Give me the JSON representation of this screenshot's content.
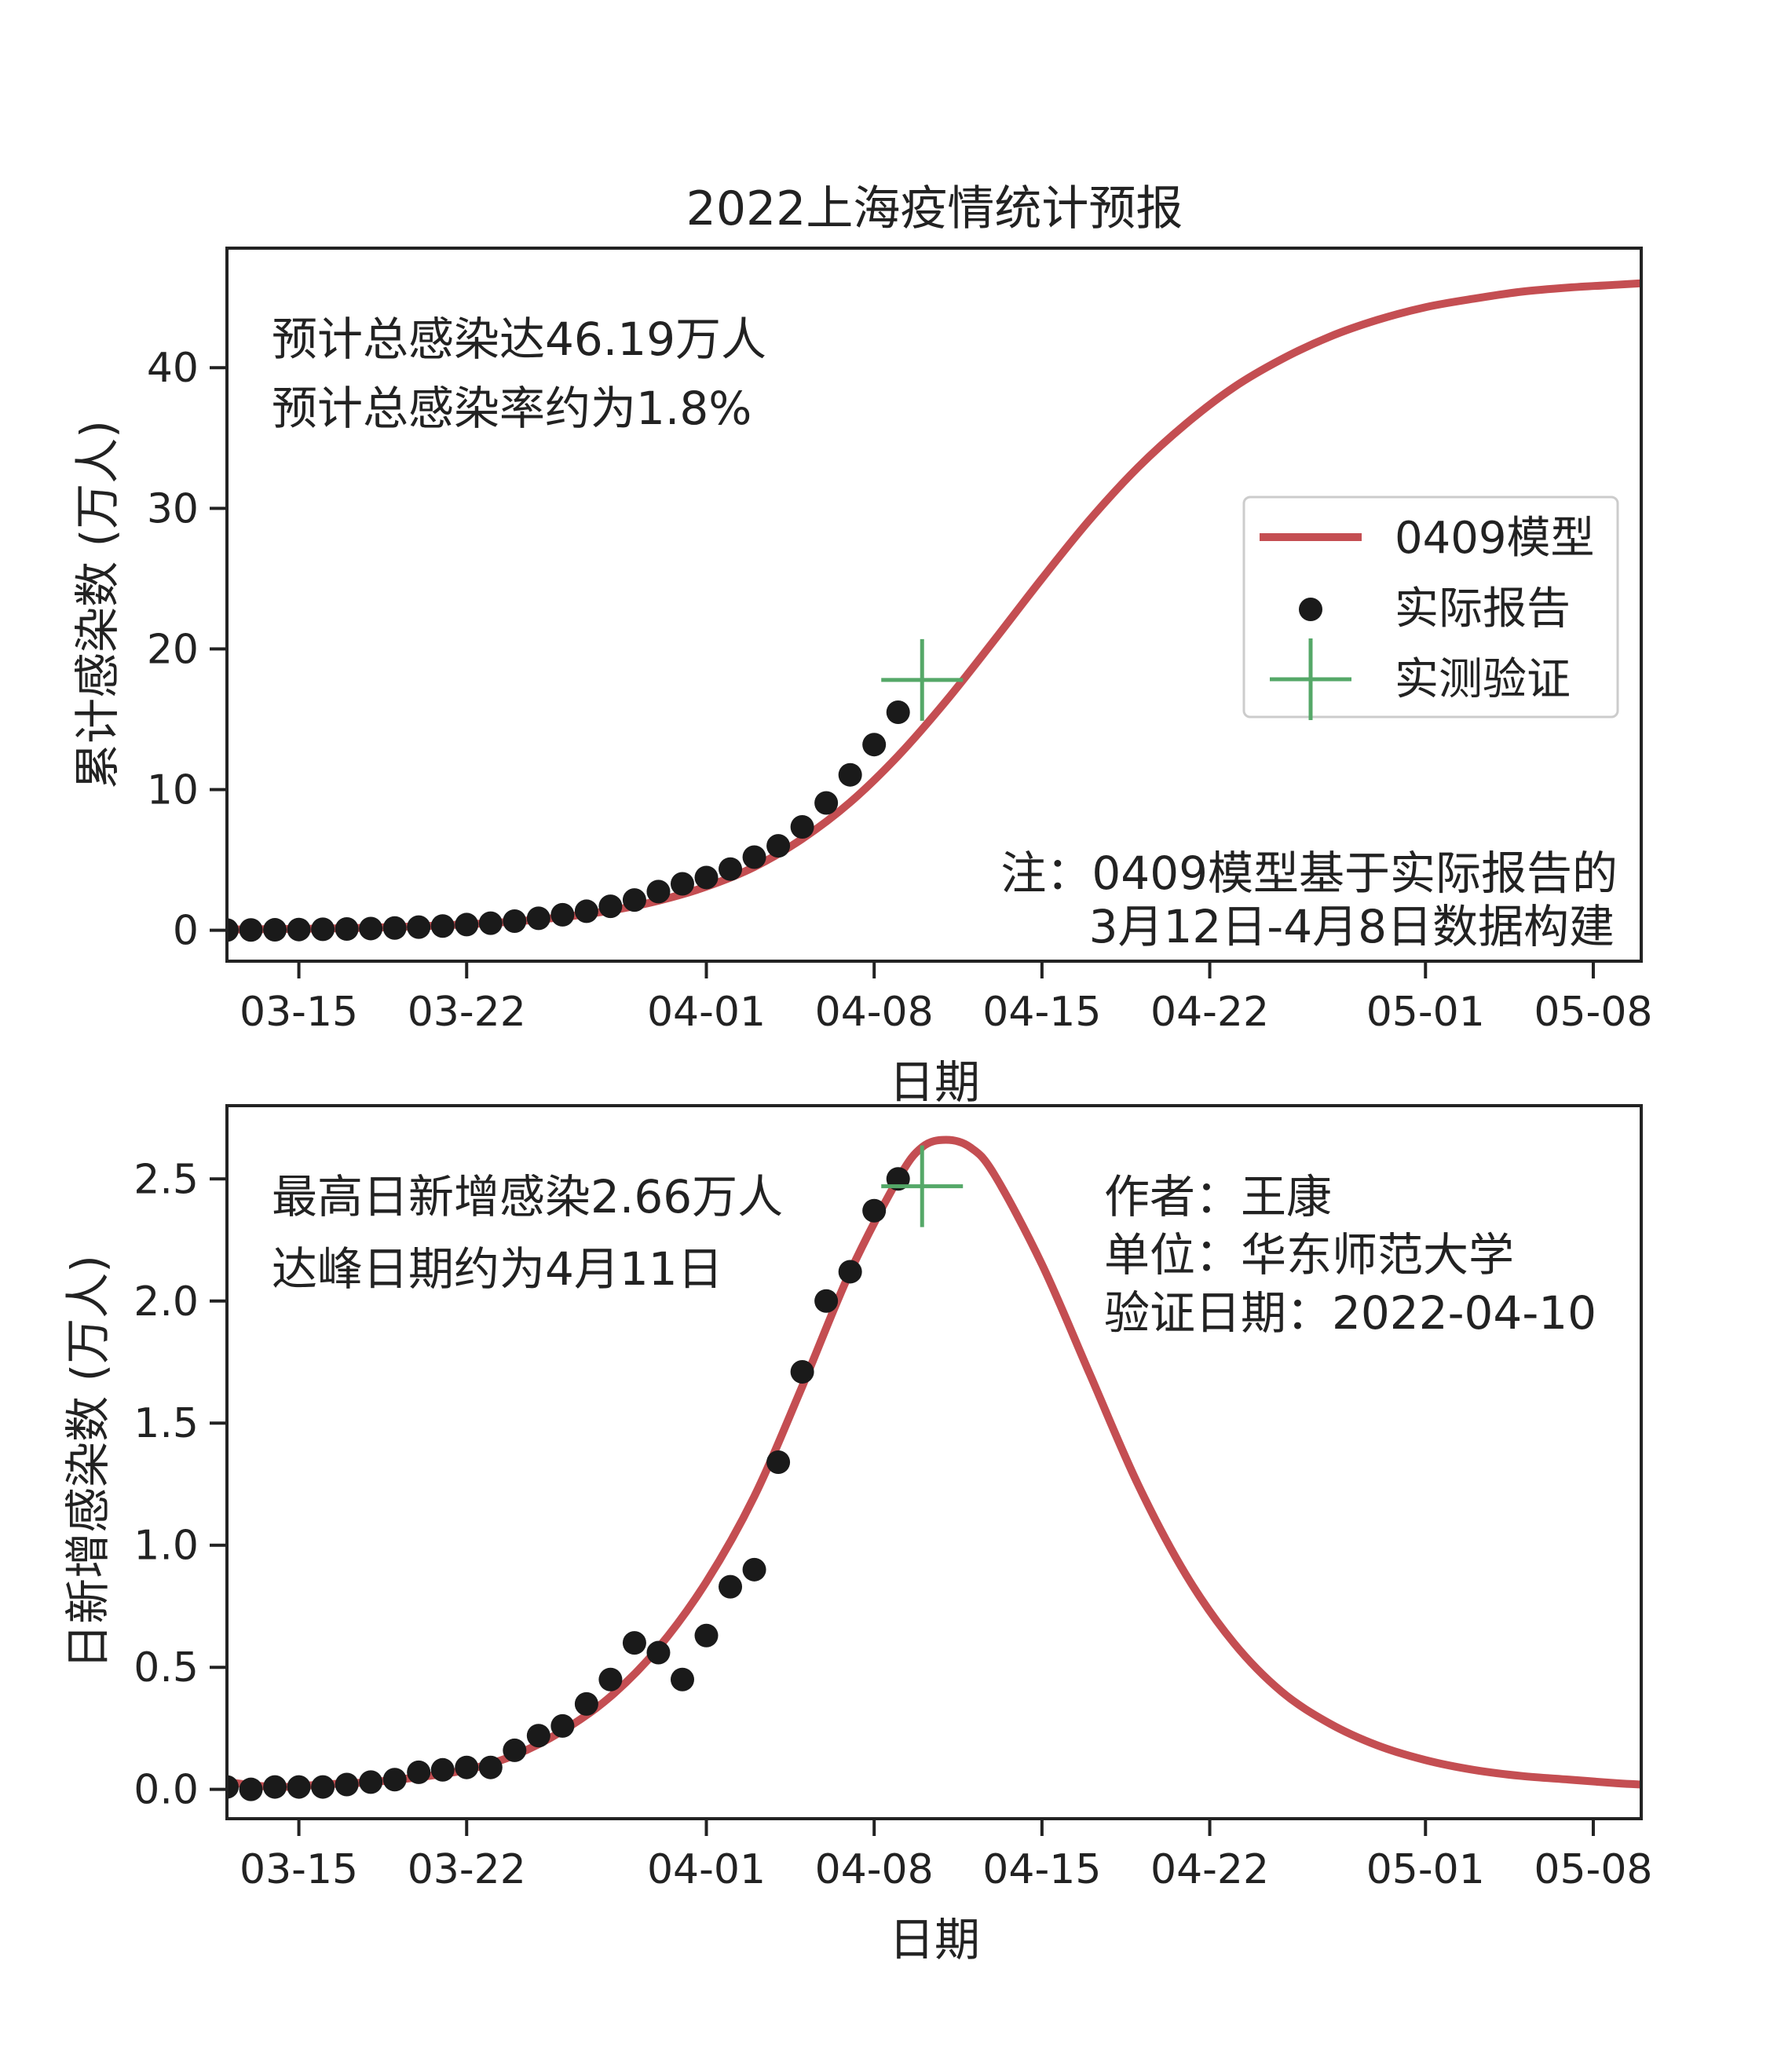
{
  "figure": {
    "title": "2022上海疫情统计预报",
    "colors": {
      "model": "#c44e52",
      "actual": "#1a1a1a",
      "verify": "#55a868",
      "axis": "#222222"
    }
  },
  "chart_data": [
    {
      "type": "line",
      "panel": "top",
      "title": "2022上海疫情统计预报",
      "xlabel": "日期",
      "ylabel": "累计感染数 (万人)",
      "x_ticks": [
        "03-15",
        "03-22",
        "04-01",
        "04-08",
        "04-15",
        "04-22",
        "05-01",
        "05-08"
      ],
      "y_ticks": [
        "0",
        "10",
        "20",
        "30",
        "40"
      ],
      "xlim": [
        "2022-03-12",
        "2022-05-10"
      ],
      "ylim": [
        -2.2,
        48.5
      ],
      "legend": {
        "position": "center-right",
        "entries": [
          {
            "label": "0409模型",
            "marker": "line"
          },
          {
            "label": "实际报告",
            "marker": "dot"
          },
          {
            "label": "实测验证",
            "marker": "cross"
          }
        ]
      },
      "annotations": {
        "total": "预计总感染达46.19万人",
        "rate": "预计总感染率约为1.8%",
        "note_line1": "注：0409模型基于实际报告的",
        "note_line2": "3月12日-4月8日数据构建"
      },
      "series": [
        {
          "name": "0409模型",
          "x": [
            "2022-03-12",
            "2022-03-14",
            "2022-03-16",
            "2022-03-18",
            "2022-03-20",
            "2022-03-22",
            "2022-03-24",
            "2022-03-26",
            "2022-03-28",
            "2022-03-30",
            "2022-04-01",
            "2022-04-03",
            "2022-04-05",
            "2022-04-07",
            "2022-04-09",
            "2022-04-11",
            "2022-04-13",
            "2022-04-15",
            "2022-04-17",
            "2022-04-19",
            "2022-04-21",
            "2022-04-23",
            "2022-04-25",
            "2022-04-27",
            "2022-04-29",
            "2022-05-01",
            "2022-05-03",
            "2022-05-05",
            "2022-05-07",
            "2022-05-09",
            "2022-05-10"
          ],
          "y": [
            0.05,
            0.08,
            0.12,
            0.18,
            0.28,
            0.42,
            0.62,
            0.93,
            1.4,
            2.1,
            3.1,
            4.5,
            6.5,
            9.1,
            12.4,
            16.3,
            20.6,
            25.0,
            29.2,
            32.9,
            36.0,
            38.6,
            40.6,
            42.2,
            43.4,
            44.3,
            44.9,
            45.4,
            45.7,
            45.9,
            46.0
          ]
        },
        {
          "name": "实际报告",
          "x": [
            "2022-03-12",
            "2022-03-13",
            "2022-03-14",
            "2022-03-15",
            "2022-03-16",
            "2022-03-17",
            "2022-03-18",
            "2022-03-19",
            "2022-03-20",
            "2022-03-21",
            "2022-03-22",
            "2022-03-23",
            "2022-03-24",
            "2022-03-25",
            "2022-03-26",
            "2022-03-27",
            "2022-03-28",
            "2022-03-29",
            "2022-03-30",
            "2022-03-31",
            "2022-04-01",
            "2022-04-02",
            "2022-04-03",
            "2022-04-04",
            "2022-04-05",
            "2022-04-06",
            "2022-04-07",
            "2022-04-08",
            "2022-04-09"
          ],
          "y": [
            0.01,
            0.02,
            0.03,
            0.05,
            0.07,
            0.09,
            0.12,
            0.16,
            0.22,
            0.3,
            0.4,
            0.5,
            0.65,
            0.85,
            1.1,
            1.35,
            1.7,
            2.15,
            2.75,
            3.3,
            3.75,
            4.35,
            5.2,
            6.0,
            7.35,
            9.05,
            11.05,
            13.2,
            15.5
          ]
        },
        {
          "name": "实测验证",
          "x": [
            "2022-04-10"
          ],
          "y": [
            17.8
          ]
        }
      ]
    },
    {
      "type": "line",
      "panel": "bottom",
      "xlabel": "日期",
      "ylabel": "日新增感染数 (万人)",
      "x_ticks": [
        "03-15",
        "03-22",
        "04-01",
        "04-08",
        "04-15",
        "04-22",
        "05-01",
        "05-08"
      ],
      "y_ticks": [
        "0.0",
        "0.5",
        "1.0",
        "1.5",
        "2.0",
        "2.5"
      ],
      "xlim": [
        "2022-03-12",
        "2022-05-10"
      ],
      "ylim": [
        -0.12,
        2.8
      ],
      "annotations": {
        "peak_value": "最高日新增感染2.66万人",
        "peak_date": "达峰日期约为4月11日",
        "author": "作者：王康",
        "affiliation": "单位：华东师范大学",
        "verify_date": "验证日期：2022-04-10"
      },
      "series": [
        {
          "name": "0409模型",
          "x": [
            "2022-03-12",
            "2022-03-14",
            "2022-03-16",
            "2022-03-18",
            "2022-03-20",
            "2022-03-22",
            "2022-03-24",
            "2022-03-26",
            "2022-03-28",
            "2022-03-30",
            "2022-04-01",
            "2022-04-03",
            "2022-04-05",
            "2022-04-07",
            "2022-04-09",
            "2022-04-10",
            "2022-04-11",
            "2022-04-12",
            "2022-04-13",
            "2022-04-15",
            "2022-04-17",
            "2022-04-19",
            "2022-04-21",
            "2022-04-23",
            "2022-04-25",
            "2022-04-27",
            "2022-04-29",
            "2022-05-01",
            "2022-05-03",
            "2022-05-05",
            "2022-05-07",
            "2022-05-09",
            "2022-05-10"
          ],
          "y": [
            0.03,
            0.01,
            0.02,
            0.03,
            0.05,
            0.08,
            0.14,
            0.24,
            0.38,
            0.58,
            0.85,
            1.2,
            1.65,
            2.12,
            2.5,
            2.63,
            2.66,
            2.63,
            2.52,
            2.15,
            1.7,
            1.25,
            0.88,
            0.6,
            0.4,
            0.27,
            0.18,
            0.12,
            0.08,
            0.055,
            0.04,
            0.025,
            0.02
          ]
        },
        {
          "name": "实际报告",
          "x": [
            "2022-03-12",
            "2022-03-13",
            "2022-03-14",
            "2022-03-15",
            "2022-03-16",
            "2022-03-17",
            "2022-03-18",
            "2022-03-19",
            "2022-03-20",
            "2022-03-21",
            "2022-03-22",
            "2022-03-23",
            "2022-03-24",
            "2022-03-25",
            "2022-03-26",
            "2022-03-27",
            "2022-03-28",
            "2022-03-29",
            "2022-03-30",
            "2022-03-31",
            "2022-04-01",
            "2022-04-02",
            "2022-04-03",
            "2022-04-04",
            "2022-04-05",
            "2022-04-06",
            "2022-04-07",
            "2022-04-08",
            "2022-04-09"
          ],
          "y": [
            0.01,
            0.0,
            0.01,
            0.01,
            0.01,
            0.02,
            0.03,
            0.04,
            0.07,
            0.08,
            0.09,
            0.09,
            0.16,
            0.22,
            0.26,
            0.35,
            0.45,
            0.6,
            0.56,
            0.45,
            0.63,
            0.83,
            0.9,
            1.34,
            1.71,
            2.0,
            2.12,
            2.37,
            2.5
          ]
        },
        {
          "name": "实测验证",
          "x": [
            "2022-04-10"
          ],
          "y": [
            2.47
          ]
        }
      ]
    }
  ]
}
